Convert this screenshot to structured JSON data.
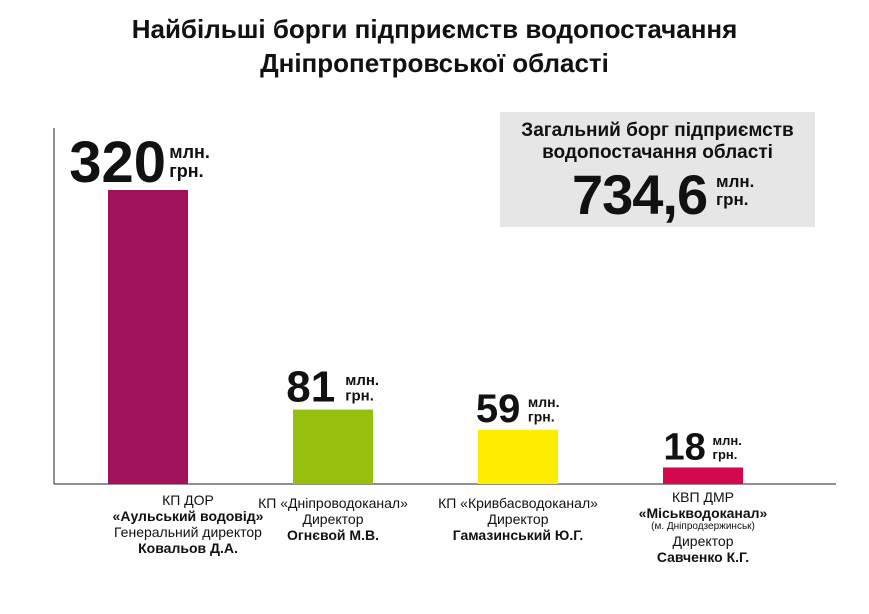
{
  "title": {
    "line1": "Найбільші борги підприємств водопостачання",
    "line2": "Дніпропетровської області"
  },
  "total": {
    "label_line1": "Загальний борг підприємств",
    "label_line2": "водопостачання області",
    "value": "734,6",
    "unit_line1": "млн.",
    "unit_line2": "грн."
  },
  "colors": {
    "bar1": "#a0125a",
    "bar2": "#97bf0d",
    "bar3": "#ffec00",
    "bar4": "#d4084f",
    "axis": "#222222",
    "total_bg": "#e6e6e6"
  },
  "chart_data": {
    "type": "bar",
    "title": "Найбільші борги підприємств водопостачання Дніпропетровської області",
    "unit": "млн. грн.",
    "categories": [
      "КП ДОР «Аульський водовід»",
      "КП «Дніпроводоканал»",
      "КП «Кривбасводоканал»",
      "КВП ДМР «Міськводоканал»"
    ],
    "values": [
      320,
      81,
      59,
      18
    ],
    "value_labels": [
      "320",
      "81",
      "59",
      "18"
    ],
    "unit_line1": "млн.",
    "unit_line2": "грн.",
    "ylim": [
      0,
      320
    ]
  },
  "labels": [
    {
      "line1": "КП ДОР",
      "line2": "«Аульський водовід»",
      "line3": "Генеральний директор",
      "line4": "Ковальов Д.А."
    },
    {
      "line1": "КП «Дніпроводоканал»",
      "line2": "Директор",
      "line3": "Огнєвой М.В."
    },
    {
      "line1": "КП «Кривбасводоканал»",
      "line2": "Директор",
      "line3": "Гамазинський Ю.Г."
    },
    {
      "line1": "КВП ДМР",
      "line2": "«Міськводоканал»",
      "line3": "(м. Дніпродзержинськ)",
      "line4": "Директор",
      "line5": "Савченко К.Г."
    }
  ]
}
